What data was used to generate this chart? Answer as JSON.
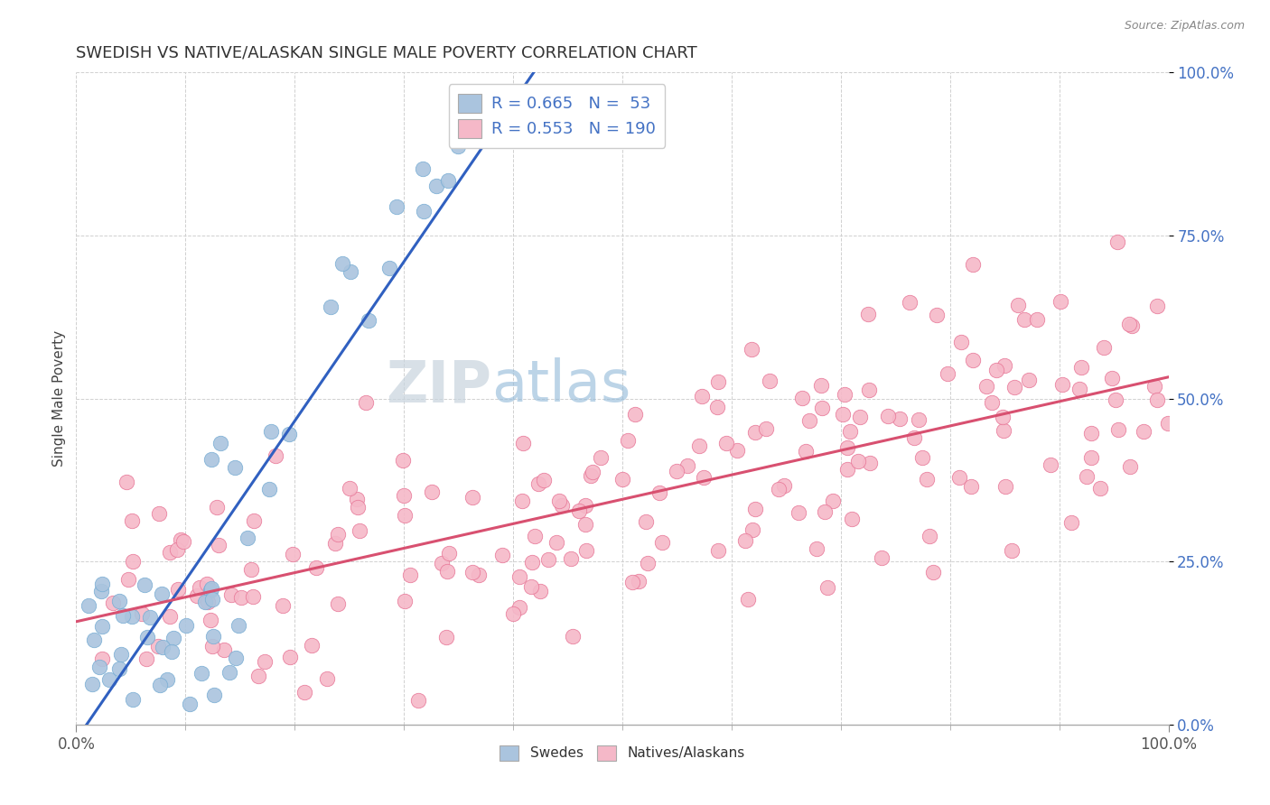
{
  "title": "SWEDISH VS NATIVE/ALASKAN SINGLE MALE POVERTY CORRELATION CHART",
  "source": "Source: ZipAtlas.com",
  "ylabel": "Single Male Poverty",
  "xlim": [
    0,
    1
  ],
  "ylim": [
    0,
    1
  ],
  "xtick_labels": [
    "0.0%",
    "100.0%"
  ],
  "ytick_labels": [
    "0.0%",
    "25.0%",
    "50.0%",
    "75.0%",
    "100.0%"
  ],
  "ytick_positions": [
    0.0,
    0.25,
    0.5,
    0.75,
    1.0
  ],
  "swedes_color": "#aac4de",
  "swedes_edge_color": "#7aaed4",
  "natives_color": "#f5b8c8",
  "natives_edge_color": "#e87898",
  "swedes_line_color": "#3060c0",
  "natives_line_color": "#d85070",
  "R_swedes": 0.665,
  "N_swedes": 53,
  "R_natives": 0.553,
  "N_natives": 190,
  "legend_label_swedes": "Swedes",
  "legend_label_natives": "Natives/Alaskans",
  "background_color": "#ffffff",
  "grid_color": "#d0d0d0",
  "text_color": "#333333",
  "legend_text_color": "#4472c4",
  "ytick_color": "#4472c4",
  "source_color": "#888888",
  "watermark_zip_color": "#c8d8e8",
  "watermark_atlas_color": "#90b8d8"
}
